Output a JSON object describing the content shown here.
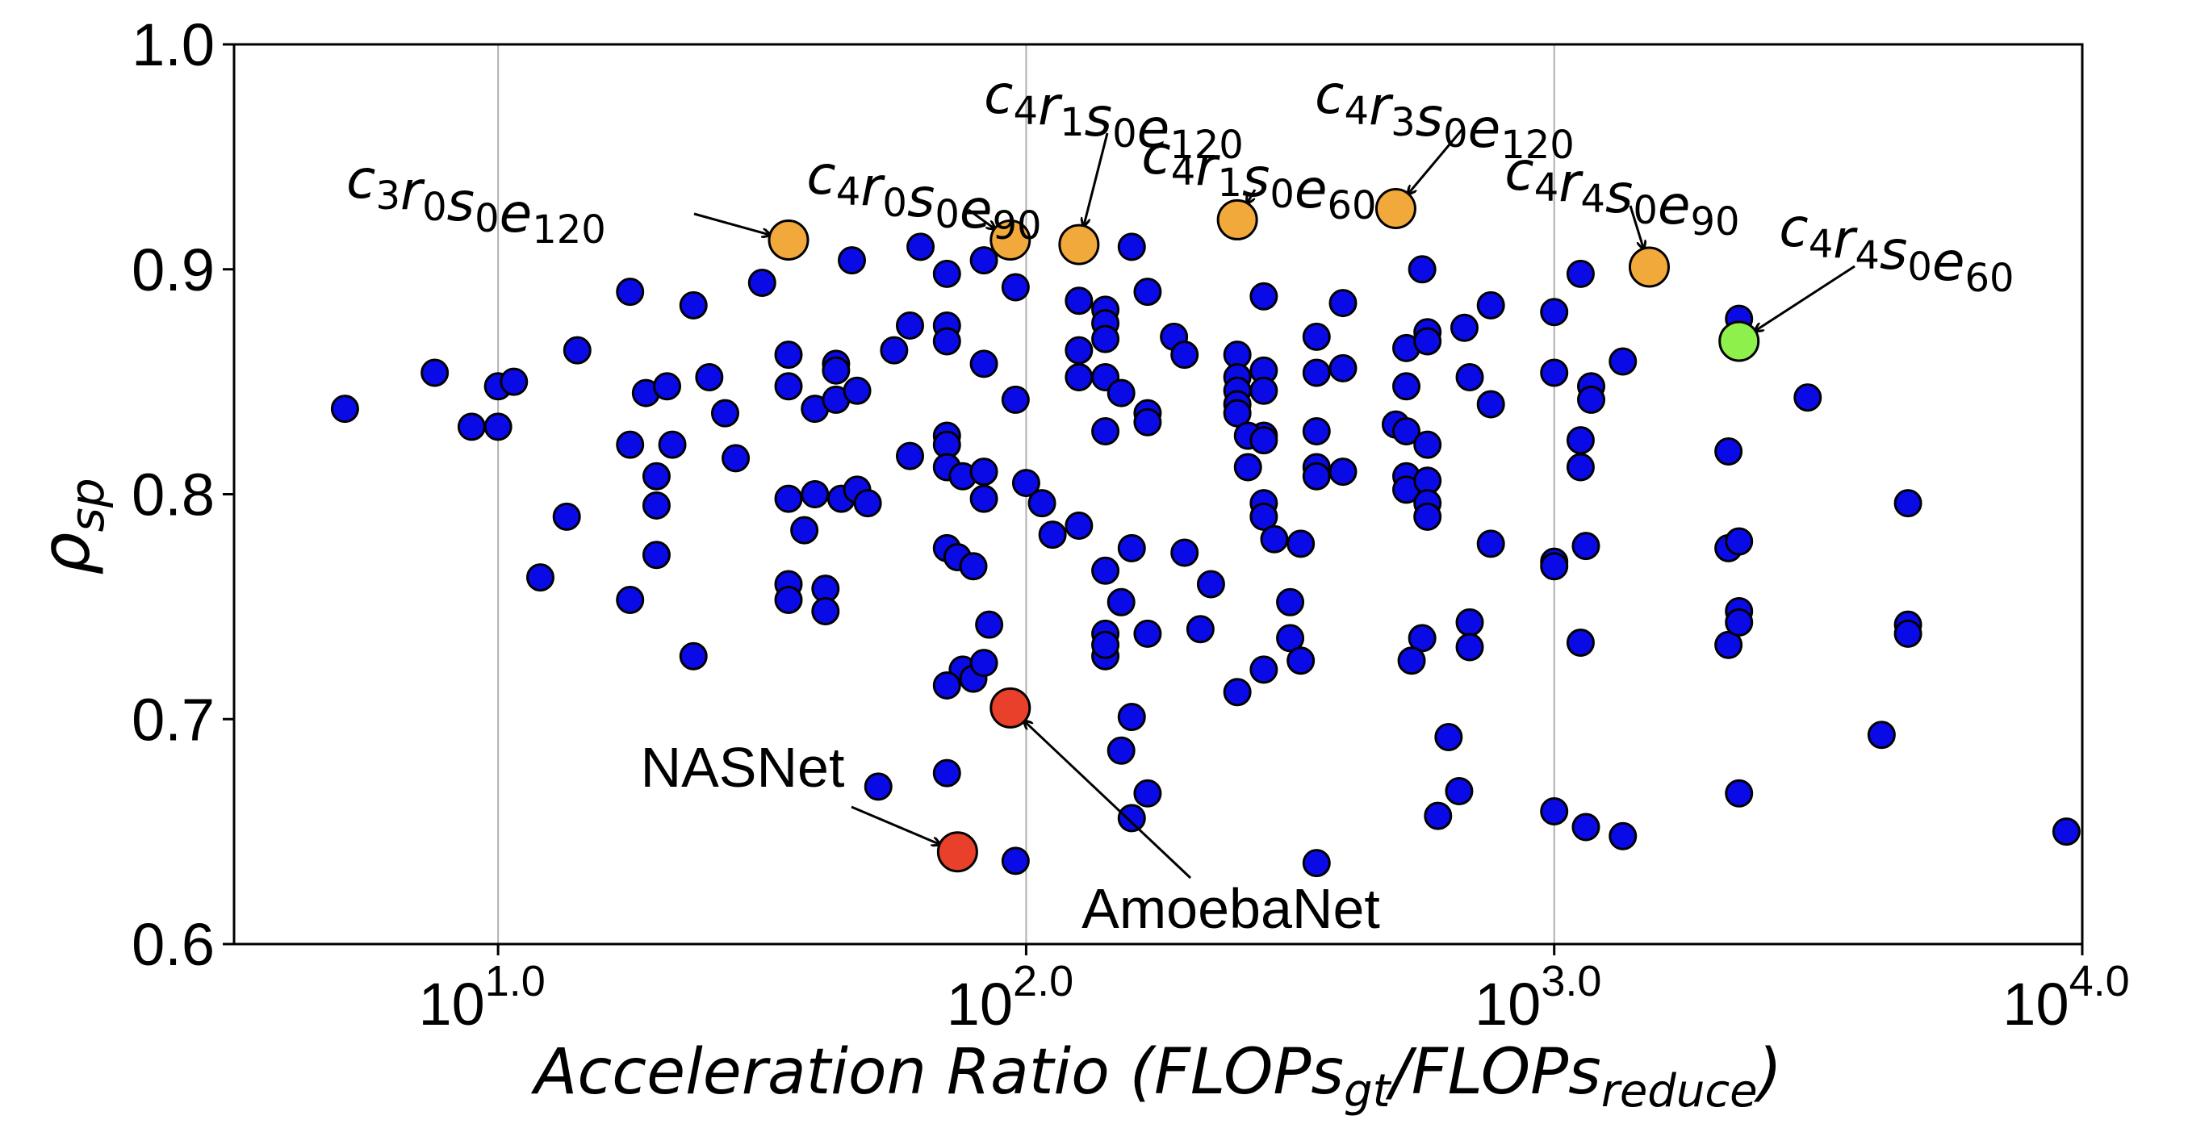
{
  "chart_data": {
    "type": "scatter",
    "xscale": "log10",
    "xlim_log10": [
      0.5,
      4.0
    ],
    "ylim": [
      0.6,
      1.0
    ],
    "grid": "x-major-only",
    "xlabel": {
      "main": "Acceleration Ratio (FLOPs",
      "sub1": "gt",
      "mid": "/FLOPs",
      "sub2": "reduce",
      "end": ")"
    },
    "ylabel": {
      "main": "ρ",
      "sub": "sp"
    },
    "xticks": [
      {
        "value_log10": 1.0,
        "base": "10",
        "exp": "1.0"
      },
      {
        "value_log10": 2.0,
        "base": "10",
        "exp": "2.0"
      },
      {
        "value_log10": 3.0,
        "base": "10",
        "exp": "3.0"
      },
      {
        "value_log10": 4.0,
        "base": "10",
        "exp": "4.0"
      }
    ],
    "yticks": [
      "0.6",
      "0.7",
      "0.8",
      "0.9",
      "1.0"
    ],
    "colors": {
      "default": "#0a0ae6",
      "searched": "#f2a93b",
      "best": "#8ef04a",
      "baseline": "#e8402a"
    },
    "series": [
      {
        "role": "candidate architectures",
        "color": "#0a0ae6",
        "points_log10x_y": [
          [
            0.71,
            0.838
          ],
          [
            0.88,
            0.854
          ],
          [
            0.95,
            0.83
          ],
          [
            1.0,
            0.848
          ],
          [
            1.03,
            0.85
          ],
          [
            1.0,
            0.83
          ],
          [
            1.13,
            0.79
          ],
          [
            1.08,
            0.763
          ],
          [
            1.15,
            0.864
          ],
          [
            1.25,
            0.89
          ],
          [
            1.28,
            0.845
          ],
          [
            1.32,
            0.848
          ],
          [
            1.25,
            0.822
          ],
          [
            1.33,
            0.822
          ],
          [
            1.3,
            0.808
          ],
          [
            1.3,
            0.795
          ],
          [
            1.3,
            0.773
          ],
          [
            1.25,
            0.753
          ],
          [
            1.37,
            0.884
          ],
          [
            1.4,
            0.852
          ],
          [
            1.43,
            0.836
          ],
          [
            1.45,
            0.816
          ],
          [
            1.37,
            0.728
          ],
          [
            1.5,
            0.894
          ],
          [
            1.55,
            0.862
          ],
          [
            1.55,
            0.848
          ],
          [
            1.6,
            0.838
          ],
          [
            1.55,
            0.798
          ],
          [
            1.58,
            0.784
          ],
          [
            1.6,
            0.8
          ],
          [
            1.55,
            0.76
          ],
          [
            1.55,
            0.753
          ],
          [
            1.62,
            0.758
          ],
          [
            1.62,
            0.748
          ],
          [
            1.64,
            0.858
          ],
          [
            1.64,
            0.855
          ],
          [
            1.64,
            0.842
          ],
          [
            1.68,
            0.846
          ],
          [
            1.65,
            0.798
          ],
          [
            1.68,
            0.802
          ],
          [
            1.7,
            0.796
          ],
          [
            1.67,
            0.904
          ],
          [
            1.72,
            0.67
          ],
          [
            1.75,
            0.864
          ],
          [
            1.8,
            0.91
          ],
          [
            1.78,
            0.875
          ],
          [
            1.85,
            0.898
          ],
          [
            1.85,
            0.875
          ],
          [
            1.85,
            0.868
          ],
          [
            1.85,
            0.826
          ],
          [
            1.85,
            0.822
          ],
          [
            1.78,
            0.817
          ],
          [
            1.85,
            0.812
          ],
          [
            1.88,
            0.808
          ],
          [
            1.85,
            0.776
          ],
          [
            1.87,
            0.772
          ],
          [
            1.9,
            0.768
          ],
          [
            1.92,
            0.81
          ],
          [
            1.92,
            0.798
          ],
          [
            1.92,
            0.858
          ],
          [
            1.92,
            0.904
          ],
          [
            1.98,
            0.892
          ],
          [
            1.98,
            0.842
          ],
          [
            2.0,
            0.805
          ],
          [
            2.03,
            0.796
          ],
          [
            2.05,
            0.782
          ],
          [
            2.1,
            0.786
          ],
          [
            1.93,
            0.742
          ],
          [
            1.88,
            0.722
          ],
          [
            1.9,
            0.718
          ],
          [
            1.92,
            0.725
          ],
          [
            1.85,
            0.715
          ],
          [
            1.85,
            0.676
          ],
          [
            1.98,
            0.637
          ],
          [
            2.1,
            0.886
          ],
          [
            2.1,
            0.864
          ],
          [
            2.1,
            0.852
          ],
          [
            2.15,
            0.882
          ],
          [
            2.15,
            0.876
          ],
          [
            2.15,
            0.869
          ],
          [
            2.15,
            0.852
          ],
          [
            2.18,
            0.845
          ],
          [
            2.15,
            0.828
          ],
          [
            2.15,
            0.766
          ],
          [
            2.18,
            0.752
          ],
          [
            2.15,
            0.738
          ],
          [
            2.15,
            0.728
          ],
          [
            2.15,
            0.733
          ],
          [
            2.2,
            0.91
          ],
          [
            2.23,
            0.89
          ],
          [
            2.23,
            0.836
          ],
          [
            2.23,
            0.832
          ],
          [
            2.2,
            0.776
          ],
          [
            2.28,
            0.87
          ],
          [
            2.3,
            0.862
          ],
          [
            2.3,
            0.774
          ],
          [
            2.35,
            0.76
          ],
          [
            2.33,
            0.74
          ],
          [
            2.23,
            0.738
          ],
          [
            2.2,
            0.701
          ],
          [
            2.18,
            0.686
          ],
          [
            2.23,
            0.667
          ],
          [
            2.2,
            0.656
          ],
          [
            2.45,
            0.826
          ],
          [
            2.4,
            0.862
          ],
          [
            2.4,
            0.852
          ],
          [
            2.4,
            0.846
          ],
          [
            2.4,
            0.84
          ],
          [
            2.4,
            0.836
          ],
          [
            2.42,
            0.826
          ],
          [
            2.42,
            0.812
          ],
          [
            2.45,
            0.888
          ],
          [
            2.45,
            0.855
          ],
          [
            2.45,
            0.846
          ],
          [
            2.45,
            0.824
          ],
          [
            2.45,
            0.796
          ],
          [
            2.45,
            0.79
          ],
          [
            2.47,
            0.78
          ],
          [
            2.5,
            0.752
          ],
          [
            2.5,
            0.736
          ],
          [
            2.45,
            0.722
          ],
          [
            2.4,
            0.712
          ],
          [
            2.55,
            0.87
          ],
          [
            2.55,
            0.854
          ],
          [
            2.55,
            0.828
          ],
          [
            2.55,
            0.812
          ],
          [
            2.55,
            0.808
          ],
          [
            2.6,
            0.885
          ],
          [
            2.6,
            0.856
          ],
          [
            2.6,
            0.81
          ],
          [
            2.52,
            0.778
          ],
          [
            2.52,
            0.726
          ],
          [
            2.55,
            0.636
          ],
          [
            2.7,
            0.831
          ],
          [
            2.72,
            0.865
          ],
          [
            2.72,
            0.848
          ],
          [
            2.72,
            0.828
          ],
          [
            2.72,
            0.808
          ],
          [
            2.72,
            0.802
          ],
          [
            2.75,
            0.736
          ],
          [
            2.73,
            0.726
          ],
          [
            2.75,
            0.9
          ],
          [
            2.76,
            0.872
          ],
          [
            2.76,
            0.868
          ],
          [
            2.76,
            0.822
          ],
          [
            2.76,
            0.806
          ],
          [
            2.76,
            0.796
          ],
          [
            2.76,
            0.79
          ],
          [
            2.8,
            0.692
          ],
          [
            2.78,
            0.657
          ],
          [
            2.83,
            0.874
          ],
          [
            2.84,
            0.852
          ],
          [
            2.84,
            0.743
          ],
          [
            2.84,
            0.732
          ],
          [
            2.82,
            0.668
          ],
          [
            2.88,
            0.884
          ],
          [
            2.88,
            0.84
          ],
          [
            2.88,
            0.778
          ],
          [
            3.0,
            0.881
          ],
          [
            3.0,
            0.854
          ],
          [
            3.0,
            0.77
          ],
          [
            3.0,
            0.768
          ],
          [
            3.0,
            0.659
          ],
          [
            3.05,
            0.898
          ],
          [
            3.07,
            0.848
          ],
          [
            3.07,
            0.842
          ],
          [
            3.05,
            0.824
          ],
          [
            3.05,
            0.812
          ],
          [
            3.06,
            0.777
          ],
          [
            3.05,
            0.734
          ],
          [
            3.06,
            0.652
          ],
          [
            3.13,
            0.859
          ],
          [
            3.13,
            0.648
          ],
          [
            3.33,
            0.819
          ],
          [
            3.33,
            0.776
          ],
          [
            3.33,
            0.733
          ],
          [
            3.35,
            0.878
          ],
          [
            3.35,
            0.779
          ],
          [
            3.35,
            0.748
          ],
          [
            3.35,
            0.743
          ],
          [
            3.35,
            0.667
          ],
          [
            3.48,
            0.843
          ],
          [
            3.62,
            0.693
          ],
          [
            3.67,
            0.796
          ],
          [
            3.67,
            0.742
          ],
          [
            3.67,
            0.738
          ],
          [
            3.97,
            0.65
          ]
        ]
      }
    ],
    "highlights": [
      {
        "name": "c3r0s0e120",
        "base": "c",
        "parts": [
          [
            "c",
            "3"
          ],
          [
            "r",
            "0"
          ],
          [
            "s",
            "0"
          ],
          [
            "e",
            "120"
          ]
        ],
        "x_log10": 1.55,
        "y": 0.913,
        "color": "#f2a93b"
      },
      {
        "name": "c4r0s0e90",
        "parts": [
          [
            "c",
            "4"
          ],
          [
            "r",
            "0"
          ],
          [
            "s",
            "0"
          ],
          [
            "e",
            "90"
          ]
        ],
        "x_log10": 1.97,
        "y": 0.913,
        "color": "#f2a93b"
      },
      {
        "name": "c4r1s0e120",
        "parts": [
          [
            "c",
            "4"
          ],
          [
            "r",
            "1"
          ],
          [
            "s",
            "0"
          ],
          [
            "e",
            "120"
          ]
        ],
        "x_log10": 2.1,
        "y": 0.911,
        "color": "#f2a93b"
      },
      {
        "name": "c4r1s0e60",
        "parts": [
          [
            "c",
            "4"
          ],
          [
            "r",
            "1"
          ],
          [
            "s",
            "0"
          ],
          [
            "e",
            "60"
          ]
        ],
        "x_log10": 2.4,
        "y": 0.922,
        "color": "#f2a93b"
      },
      {
        "name": "c4r3s0e120",
        "parts": [
          [
            "c",
            "4"
          ],
          [
            "r",
            "3"
          ],
          [
            "s",
            "0"
          ],
          [
            "e",
            "120"
          ]
        ],
        "x_log10": 2.7,
        "y": 0.927,
        "color": "#f2a93b"
      },
      {
        "name": "c4r4s0e90",
        "parts": [
          [
            "c",
            "4"
          ],
          [
            "r",
            "4"
          ],
          [
            "s",
            "0"
          ],
          [
            "e",
            "90"
          ]
        ],
        "x_log10": 3.18,
        "y": 0.901,
        "color": "#f2a93b"
      },
      {
        "name": "c4r4s0e60",
        "parts": [
          [
            "c",
            "4"
          ],
          [
            "r",
            "4"
          ],
          [
            "s",
            "0"
          ],
          [
            "e",
            "60"
          ]
        ],
        "x_log10": 3.35,
        "y": 0.868,
        "color": "#8ef04a"
      },
      {
        "name": "NASNet",
        "label": "NASNet",
        "x_log10": 1.87,
        "y": 0.641,
        "color": "#e8402a"
      },
      {
        "name": "AmoebaNet",
        "label": "AmoebaNet",
        "x_log10": 1.97,
        "y": 0.705,
        "color": "#e8402a"
      }
    ]
  }
}
